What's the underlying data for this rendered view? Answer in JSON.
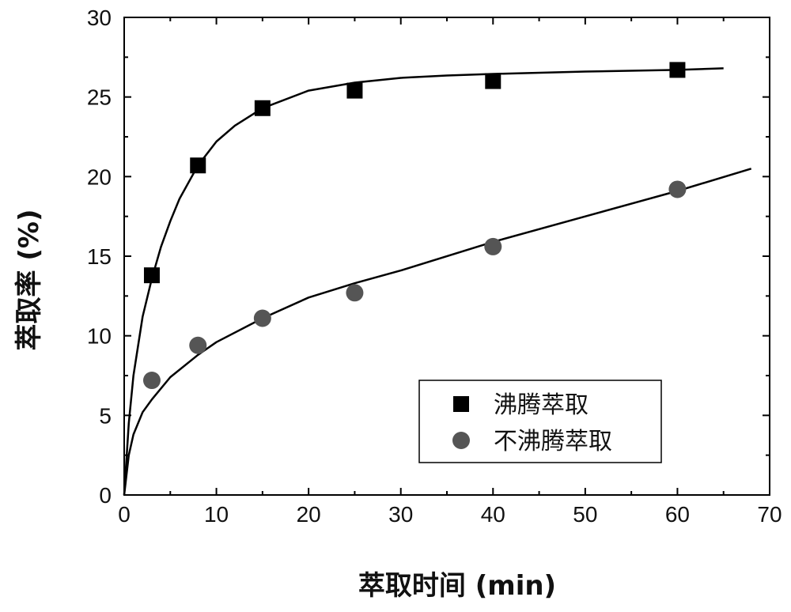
{
  "chart_data": {
    "type": "scatter",
    "xlabel": "萃取时间 (min)",
    "ylabel": "萃取率 (%)",
    "xlim": [
      0,
      70
    ],
    "ylim": [
      0,
      30
    ],
    "x_ticks": [
      "0",
      "10",
      "20",
      "30",
      "40",
      "50",
      "60",
      "70"
    ],
    "y_ticks": [
      "0",
      "5",
      "10",
      "15",
      "20",
      "25",
      "30"
    ],
    "grid": false,
    "legend_position": "bottom-right",
    "series": [
      {
        "name": "沸腾萃取",
        "marker": "square",
        "color": "#000000",
        "x": [
          3,
          8,
          15,
          25,
          40,
          60
        ],
        "y": [
          13.8,
          20.7,
          24.3,
          25.4,
          26.0,
          26.7
        ],
        "fit": {
          "x": [
            0,
            0.5,
            1,
            2,
            3,
            4,
            5,
            6,
            8,
            10,
            12,
            15,
            20,
            25,
            30,
            35,
            40,
            50,
            60,
            65
          ],
          "y": [
            0,
            4.5,
            7.5,
            11.2,
            13.6,
            15.6,
            17.2,
            18.6,
            20.7,
            22.2,
            23.2,
            24.3,
            25.4,
            25.9,
            26.2,
            26.35,
            26.45,
            26.6,
            26.7,
            26.8
          ]
        }
      },
      {
        "name": "不沸腾萃取",
        "marker": "circle",
        "color": "#555555",
        "x": [
          3,
          8,
          15,
          25,
          40,
          60
        ],
        "y": [
          7.2,
          9.4,
          11.1,
          12.7,
          15.6,
          19.2
        ],
        "fit": {
          "x": [
            0,
            0.5,
            1,
            2,
            3,
            5,
            8,
            10,
            15,
            20,
            25,
            30,
            40,
            50,
            60,
            68
          ],
          "y": [
            0,
            2.5,
            3.8,
            5.2,
            6.0,
            7.4,
            8.8,
            9.6,
            11.1,
            12.4,
            13.3,
            14.1,
            15.9,
            17.5,
            19.1,
            20.5
          ]
        }
      }
    ]
  }
}
